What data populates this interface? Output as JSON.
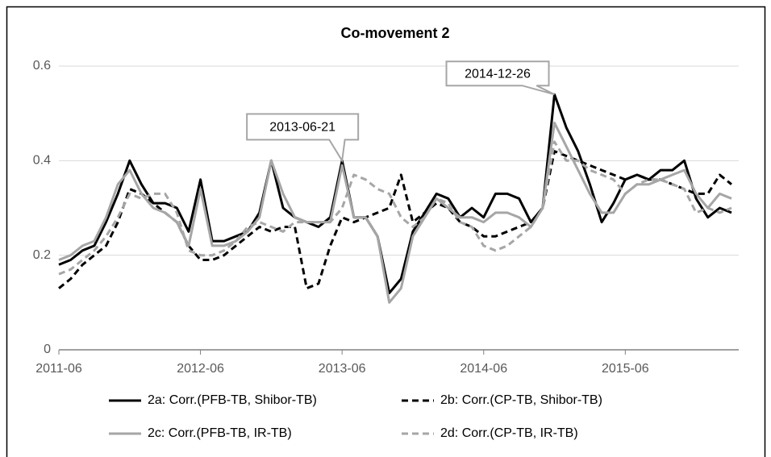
{
  "chart_data": {
    "type": "line",
    "title": "Co-movement 2",
    "x": [
      "2011-06",
      "2011-07",
      "2011-08",
      "2011-09",
      "2011-10",
      "2011-11",
      "2011-12",
      "2012-01",
      "2012-02",
      "2012-03",
      "2012-04",
      "2012-05",
      "2012-06",
      "2012-07",
      "2012-08",
      "2012-09",
      "2012-10",
      "2012-11",
      "2012-12",
      "2013-01",
      "2013-02",
      "2013-03",
      "2013-04",
      "2013-05",
      "2013-06",
      "2013-07",
      "2013-08",
      "2013-09",
      "2013-10",
      "2013-11",
      "2013-12",
      "2014-01",
      "2014-02",
      "2014-03",
      "2014-04",
      "2014-05",
      "2014-06",
      "2014-07",
      "2014-08",
      "2014-09",
      "2014-10",
      "2014-11",
      "2014-12",
      "2015-01",
      "2015-02",
      "2015-03",
      "2015-04",
      "2015-05",
      "2015-06",
      "2015-07",
      "2015-08",
      "2015-09",
      "2015-10",
      "2015-11",
      "2015-12",
      "2016-01",
      "2016-02",
      "2016-03"
    ],
    "series": [
      {
        "name": "2a: Corr.(PFB-TB, Shibor-TB)",
        "color": "#000000",
        "dash": false,
        "values": [
          0.18,
          0.19,
          0.21,
          0.22,
          0.27,
          0.33,
          0.4,
          0.35,
          0.31,
          0.31,
          0.3,
          0.25,
          0.36,
          0.23,
          0.23,
          0.24,
          0.25,
          0.29,
          0.4,
          0.3,
          0.28,
          0.27,
          0.26,
          0.28,
          0.4,
          0.28,
          0.28,
          0.24,
          0.12,
          0.15,
          0.25,
          0.29,
          0.33,
          0.32,
          0.28,
          0.3,
          0.28,
          0.33,
          0.33,
          0.32,
          0.27,
          0.3,
          0.54,
          0.47,
          0.42,
          0.35,
          0.27,
          0.31,
          0.36,
          0.37,
          0.36,
          0.38,
          0.38,
          0.4,
          0.32,
          0.28,
          0.3,
          0.29
        ]
      },
      {
        "name": "2b: Corr.(CP-TB, Shibor-TB)",
        "color": "#000000",
        "dash": true,
        "values": [
          0.13,
          0.15,
          0.18,
          0.2,
          0.22,
          0.27,
          0.34,
          0.33,
          0.31,
          0.29,
          0.27,
          0.22,
          0.19,
          0.19,
          0.2,
          0.22,
          0.24,
          0.26,
          0.25,
          0.26,
          0.26,
          0.13,
          0.14,
          0.22,
          0.28,
          0.27,
          0.28,
          0.29,
          0.3,
          0.37,
          0.27,
          0.29,
          0.31,
          0.3,
          0.27,
          0.26,
          0.24,
          0.24,
          0.25,
          0.26,
          0.27,
          0.3,
          0.42,
          0.41,
          0.4,
          0.39,
          0.38,
          0.37,
          0.36,
          0.37,
          0.36,
          0.36,
          0.35,
          0.34,
          0.33,
          0.33,
          0.37,
          0.35
        ]
      },
      {
        "name": "2c: Corr.(PFB-TB, IR-TB)",
        "color": "#a6a6a6",
        "dash": false,
        "values": [
          0.19,
          0.2,
          0.22,
          0.23,
          0.28,
          0.35,
          0.38,
          0.33,
          0.3,
          0.29,
          0.27,
          0.22,
          0.34,
          0.22,
          0.22,
          0.23,
          0.25,
          0.28,
          0.4,
          0.33,
          0.28,
          0.27,
          0.27,
          0.27,
          0.39,
          0.28,
          0.28,
          0.24,
          0.1,
          0.13,
          0.24,
          0.28,
          0.32,
          0.3,
          0.28,
          0.28,
          0.27,
          0.29,
          0.29,
          0.28,
          0.26,
          0.3,
          0.48,
          0.43,
          0.38,
          0.33,
          0.29,
          0.29,
          0.33,
          0.35,
          0.35,
          0.36,
          0.37,
          0.38,
          0.33,
          0.3,
          0.33,
          0.32
        ]
      },
      {
        "name": "2d: Corr.(CP-TB, IR-TB)",
        "color": "#a6a6a6",
        "dash": true,
        "values": [
          0.16,
          0.17,
          0.19,
          0.21,
          0.24,
          0.28,
          0.33,
          0.32,
          0.33,
          0.33,
          0.29,
          0.21,
          0.2,
          0.2,
          0.21,
          0.23,
          0.26,
          0.27,
          0.26,
          0.25,
          0.27,
          0.27,
          0.27,
          0.27,
          0.3,
          0.37,
          0.36,
          0.34,
          0.33,
          0.28,
          0.26,
          0.28,
          0.32,
          0.31,
          0.27,
          0.26,
          0.22,
          0.21,
          0.22,
          0.24,
          0.26,
          0.3,
          0.44,
          0.4,
          0.4,
          0.38,
          0.37,
          0.36,
          0.33,
          0.35,
          0.36,
          0.36,
          0.35,
          0.34,
          0.29,
          0.3,
          0.29,
          0.3
        ]
      }
    ],
    "xlim": [
      "2011-06",
      "2016-03"
    ],
    "xticks": [
      "2011-06",
      "2012-06",
      "2013-06",
      "2014-06",
      "2015-06"
    ],
    "ylim": [
      0,
      0.6
    ],
    "yticks": [
      0,
      0.2,
      0.4,
      0.6
    ],
    "grid": true,
    "legend": "bottom",
    "annotations": [
      {
        "text": "2013-06-21",
        "x": "2013-06",
        "y": 0.4
      },
      {
        "text": "2014-12-26",
        "x": "2014-12",
        "y": 0.54
      }
    ]
  }
}
